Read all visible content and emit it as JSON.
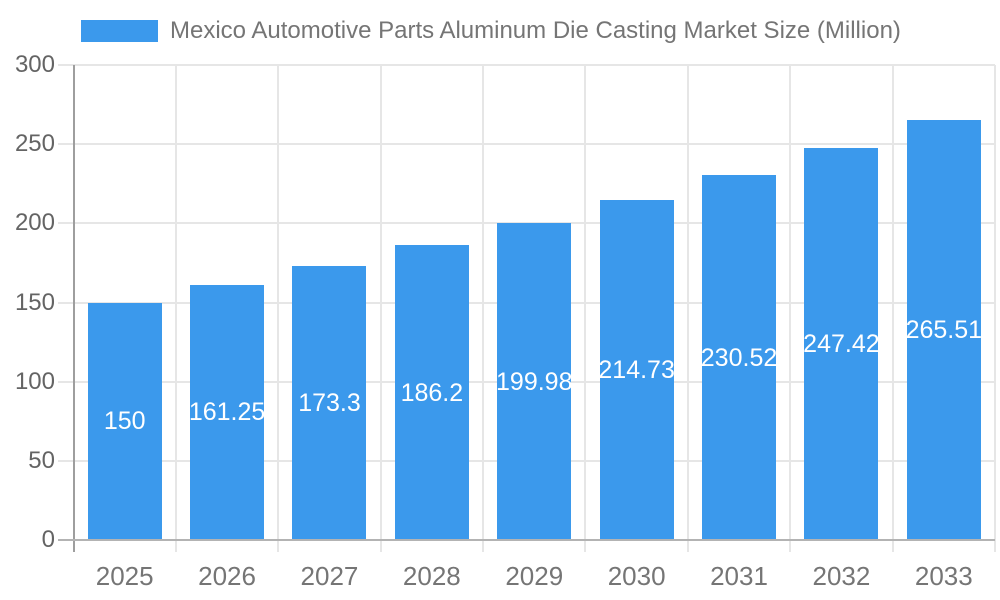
{
  "chart_data": {
    "type": "bar",
    "title": "Mexico Automotive Parts Aluminum Die Casting Market Size (Million)",
    "categories": [
      "2025",
      "2026",
      "2027",
      "2028",
      "2029",
      "2030",
      "2031",
      "2032",
      "2033"
    ],
    "values": [
      150,
      161.25,
      173.3,
      186.2,
      199.98,
      214.73,
      230.52,
      247.42,
      265.51
    ],
    "value_labels": [
      "150",
      "161.25",
      "173.3",
      "186.2",
      "199.98",
      "214.73",
      "230.52",
      "247.42",
      "265.51"
    ],
    "xlabel": "",
    "ylabel": "",
    "ylim": [
      0,
      300
    ],
    "yticks": [
      0,
      50,
      100,
      150,
      200,
      250,
      300
    ],
    "grid": true,
    "legend_position": "top-left",
    "colors": {
      "bar": "#3b99ec",
      "bar_label": "#ffffff",
      "gridline": "#e6e6e6",
      "axis_line": "#9e9e9e",
      "baseline": "#b3b3b3",
      "y_tick_text": "#646464",
      "x_tick_text": "#757575",
      "legend_text": "#757575",
      "background": "#ffffff"
    }
  }
}
